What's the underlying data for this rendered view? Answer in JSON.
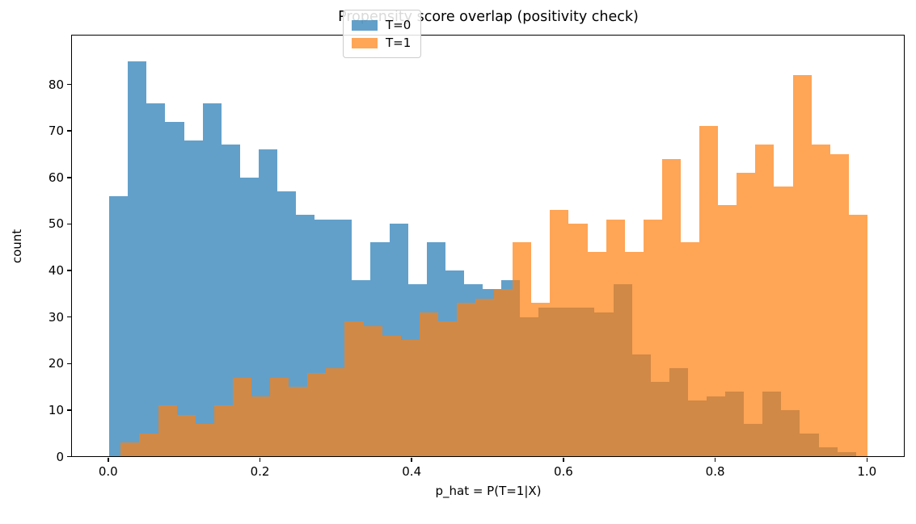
{
  "title": "Propensity score overlap (positivity check)",
  "chart_data": {
    "type": "bar",
    "subtype": "overlapping-histograms",
    "title": "Propensity score overlap (positivity check)",
    "xlabel": "p_hat = P(T=1|X)",
    "ylabel": "count",
    "grid": false,
    "background": "#ffffff",
    "alpha": 0.7,
    "xlim": [
      -0.0472,
      1.0492
    ],
    "ylim": [
      0,
      90.43
    ],
    "x_ticks": [
      0.0,
      0.2,
      0.4,
      0.6,
      0.8,
      1.0
    ],
    "x_tick_labels": [
      "0.0",
      "0.2",
      "0.4",
      "0.6",
      "0.8",
      "1.0"
    ],
    "y_ticks": [
      0,
      10,
      20,
      30,
      40,
      50,
      60,
      70,
      80
    ],
    "y_tick_labels": [
      "0",
      "10",
      "20",
      "30",
      "40",
      "50",
      "60",
      "70",
      "80"
    ],
    "legend": {
      "position": "upper center",
      "entries": [
        {
          "label": "T=0",
          "color": "#1f77b4"
        },
        {
          "label": "T=1",
          "color": "#ff7f0e"
        }
      ]
    },
    "series": [
      {
        "name": "T=0",
        "color": "#1f77b4",
        "bin_start": 0.0015,
        "bin_width": 0.0246,
        "counts": [
          56,
          85,
          76,
          72,
          68,
          76,
          67,
          60,
          66,
          57,
          52,
          51,
          51,
          38,
          46,
          50,
          37,
          46,
          40,
          37,
          36,
          38,
          30,
          32,
          32,
          32,
          31,
          37,
          22,
          16,
          19,
          12,
          13,
          14,
          7,
          14,
          10,
          5,
          2,
          1
        ]
      },
      {
        "name": "T=1",
        "color": "#ff7f0e",
        "bin_start": 0.0166,
        "bin_width": 0.0246,
        "counts": [
          3,
          5,
          11,
          9,
          7,
          11,
          17,
          13,
          17,
          15,
          18,
          19,
          29,
          28,
          26,
          25,
          31,
          29,
          33,
          34,
          36,
          46,
          33,
          53,
          50,
          44,
          51,
          44,
          51,
          64,
          46,
          71,
          54,
          61,
          67,
          58,
          82,
          67,
          65,
          52
        ]
      }
    ]
  }
}
